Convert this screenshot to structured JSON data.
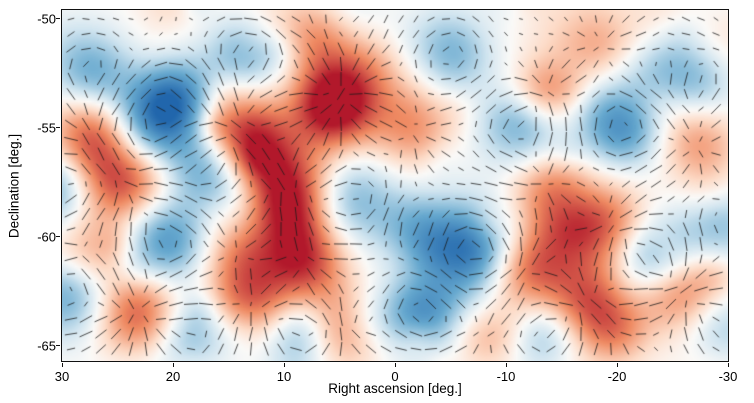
{
  "chart_data": {
    "type": "heatmap",
    "overlay": "polarization-vector-field",
    "title": "",
    "xlabel": "Right ascension [deg.]",
    "ylabel": "Declination [deg.]",
    "xlim": [
      30,
      -30
    ],
    "ylim": [
      -65.7,
      -49.6
    ],
    "x_ticks": [
      30,
      20,
      10,
      0,
      -10,
      -20,
      -30
    ],
    "x_tick_labels": [
      "30",
      "20",
      "10",
      "0",
      "-10",
      "-20",
      "-30"
    ],
    "y_ticks": [
      -50,
      -55,
      -60,
      -65
    ],
    "y_tick_labels": [
      "-50",
      "-55",
      "-60",
      "-65"
    ],
    "grid": false,
    "legend": null,
    "frame_color": "#111111",
    "colormap": [
      {
        "v": -1,
        "c": "#2166ac"
      },
      {
        "v": -0.55,
        "c": "#67a9cf"
      },
      {
        "v": -0.2,
        "c": "#d1e5f0"
      },
      {
        "v": 0,
        "c": "#fbfaf8"
      },
      {
        "v": 0.2,
        "c": "#fddbc7"
      },
      {
        "v": 0.55,
        "c": "#ef8a62"
      },
      {
        "v": 1,
        "c": "#b2182b"
      }
    ],
    "field_blobs": [
      {
        "ra": 4.5,
        "dec": -53.3,
        "amp": 1.0,
        "sigma": 1.5
      },
      {
        "ra": 6.0,
        "dec": -54.3,
        "amp": 0.55,
        "sigma": 1.2
      },
      {
        "ra": 21.2,
        "dec": -54.6,
        "amp": -0.9,
        "sigma": 1.5
      },
      {
        "ra": 19.2,
        "dec": -53.6,
        "amp": -0.45,
        "sigma": 1.2
      },
      {
        "ra": 27.5,
        "dec": -55.3,
        "amp": 0.65,
        "sigma": 1.3
      },
      {
        "ra": 14.4,
        "dec": -54.9,
        "amp": 0.8,
        "sigma": 1.4
      },
      {
        "ra": 12.3,
        "dec": -55.9,
        "amp": 0.4,
        "sigma": 1.2
      },
      {
        "ra": -1.4,
        "dec": -55.1,
        "amp": 0.55,
        "sigma": 1.3
      },
      {
        "ra": -11.3,
        "dec": -55.0,
        "amp": -0.55,
        "sigma": 1.3
      },
      {
        "ra": -13.5,
        "dec": -53.5,
        "amp": 0.5,
        "sigma": 1.1
      },
      {
        "ra": -20.3,
        "dec": -54.9,
        "amp": -0.55,
        "sigma": 1.3
      },
      {
        "ra": -27.0,
        "dec": -56.0,
        "amp": 0.55,
        "sigma": 1.3
      },
      {
        "ra": -27.5,
        "dec": -53.0,
        "amp": -0.4,
        "sigma": 1.2
      },
      {
        "ra": 27.5,
        "dec": -52.4,
        "amp": -0.5,
        "sigma": 1.3
      },
      {
        "ra": 13.1,
        "dec": -51.7,
        "amp": -0.5,
        "sigma": 1.3
      },
      {
        "ra": -5.0,
        "dec": -51.7,
        "amp": -0.45,
        "sigma": 1.3
      },
      {
        "ra": 6.8,
        "dec": -50.9,
        "amp": 0.3,
        "sigma": 1.1
      },
      {
        "ra": -18.5,
        "dec": -51.2,
        "amp": 0.35,
        "sigma": 1.2
      },
      {
        "ra": -23.9,
        "dec": -52.4,
        "amp": -0.3,
        "sigma": 1.2
      },
      {
        "ra": 24.8,
        "dec": -57.4,
        "amp": 0.85,
        "sigma": 1.5
      },
      {
        "ra": 30.2,
        "dec": -57.9,
        "amp": -0.5,
        "sigma": 1.3
      },
      {
        "ra": 16.7,
        "dec": -56.9,
        "amp": -0.55,
        "sigma": 1.3
      },
      {
        "ra": 9.9,
        "dec": -57.6,
        "amp": 0.8,
        "sigma": 1.4
      },
      {
        "ra": 9.3,
        "dec": -59.1,
        "amp": 0.45,
        "sigma": 1.2
      },
      {
        "ra": 3.6,
        "dec": -58.3,
        "amp": -0.5,
        "sigma": 1.4
      },
      {
        "ra": -13.5,
        "dec": -57.6,
        "amp": 0.6,
        "sigma": 1.3
      },
      {
        "ra": 20.7,
        "dec": -60.2,
        "amp": -0.7,
        "sigma": 1.4
      },
      {
        "ra": 27.9,
        "dec": -60.6,
        "amp": 0.35,
        "sigma": 1.2
      },
      {
        "ra": 14.0,
        "dec": -60.8,
        "amp": 0.5,
        "sigma": 1.3
      },
      {
        "ra": 8.6,
        "dec": -61.1,
        "amp": 0.6,
        "sigma": 1.3
      },
      {
        "ra": -6.8,
        "dec": -60.6,
        "amp": -0.9,
        "sigma": 1.5
      },
      {
        "ra": -1.8,
        "dec": -59.6,
        "amp": -0.4,
        "sigma": 1.2
      },
      {
        "ra": -11.7,
        "dec": -61.5,
        "amp": 0.65,
        "sigma": 1.3
      },
      {
        "ra": -15.3,
        "dec": -59.9,
        "amp": 0.45,
        "sigma": 1.2
      },
      {
        "ra": -19.4,
        "dec": -59.5,
        "amp": 0.55,
        "sigma": 1.3
      },
      {
        "ra": -23.0,
        "dec": -60.8,
        "amp": -0.6,
        "sigma": 1.3
      },
      {
        "ra": -29.3,
        "dec": -59.5,
        "amp": -0.45,
        "sigma": 1.3
      },
      {
        "ra": 29.7,
        "dec": -62.7,
        "amp": -0.5,
        "sigma": 1.3
      },
      {
        "ra": 23.4,
        "dec": -63.4,
        "amp": 0.7,
        "sigma": 1.4
      },
      {
        "ra": 18.5,
        "dec": -64.5,
        "amp": -0.45,
        "sigma": 1.2
      },
      {
        "ra": 12.6,
        "dec": -63.1,
        "amp": 0.6,
        "sigma": 1.3
      },
      {
        "ra": 8.6,
        "dec": -64.4,
        "amp": -0.5,
        "sigma": 1.2
      },
      {
        "ra": 4.5,
        "dec": -64.3,
        "amp": 0.55,
        "sigma": 1.2
      },
      {
        "ra": -2.3,
        "dec": -63.4,
        "amp": -0.55,
        "sigma": 1.3
      },
      {
        "ra": -8.1,
        "dec": -64.5,
        "amp": 0.35,
        "sigma": 1.1
      },
      {
        "ra": -13.5,
        "dec": -64.4,
        "amp": -0.45,
        "sigma": 1.2
      },
      {
        "ra": -17.1,
        "dec": -62.9,
        "amp": 0.75,
        "sigma": 1.4
      },
      {
        "ra": -19.8,
        "dec": -64.4,
        "amp": 0.4,
        "sigma": 1.1
      },
      {
        "ra": -25.7,
        "dec": -62.5,
        "amp": 0.6,
        "sigma": 1.3
      },
      {
        "ra": -29.3,
        "dec": -64.3,
        "amp": -0.35,
        "sigma": 1.2
      }
    ],
    "vectors": {
      "grid_spacing_px": 15,
      "color": "rgba(25,25,25,0.88)"
    },
    "noise": {
      "seed": 20140317,
      "count": 130,
      "amp": 0.16
    }
  }
}
